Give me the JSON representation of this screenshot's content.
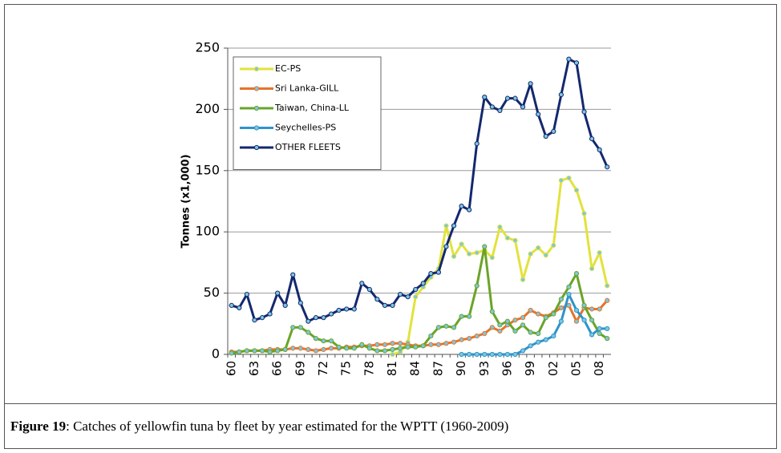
{
  "chart_data": {
    "type": "line",
    "y_label": "Tonnes (x1,000)",
    "categories": [
      "60",
      null,
      null,
      "63",
      null,
      null,
      "66",
      null,
      null,
      "69",
      null,
      null,
      "72",
      null,
      null,
      "75",
      null,
      null,
      "78",
      null,
      null,
      "81",
      null,
      null,
      "84",
      null,
      null,
      "87",
      null,
      null,
      "90",
      null,
      null,
      "93",
      null,
      null,
      "96",
      null,
      null,
      "99",
      null,
      null,
      "02",
      null,
      null,
      "05",
      null,
      null,
      "08",
      null
    ],
    "ylim": [
      0,
      250
    ],
    "yticks": [
      0,
      50,
      100,
      150,
      200,
      250
    ],
    "grid": true,
    "legend": "top-left",
    "series": [
      {
        "name": "EC-PS",
        "color": "#e2e23c",
        "values": [
          null,
          null,
          null,
          null,
          null,
          null,
          null,
          null,
          null,
          null,
          null,
          null,
          null,
          null,
          null,
          null,
          null,
          null,
          null,
          null,
          null,
          0,
          2,
          10,
          47,
          55,
          63,
          70,
          105,
          80,
          90,
          82,
          83,
          85,
          79,
          104,
          95,
          93,
          61,
          82,
          87,
          81,
          89,
          142,
          144,
          134,
          115,
          70,
          83,
          56
        ]
      },
      {
        "name": "Sri Lanka-GILL",
        "color": "#e4742a",
        "values": [
          2,
          2,
          3,
          3,
          3,
          4,
          4,
          4,
          5,
          5,
          4,
          3,
          4,
          5,
          5,
          6,
          6,
          7,
          7,
          8,
          8,
          9,
          9,
          8,
          7,
          7,
          8,
          8,
          9,
          10,
          12,
          13,
          15,
          17,
          22,
          19,
          24,
          28,
          30,
          36,
          33,
          31,
          34,
          38,
          40,
          27,
          38,
          37,
          37,
          44
        ]
      },
      {
        "name": "Taiwan, China-LL",
        "color": "#6aa428",
        "values": [
          1,
          2,
          3,
          3,
          3,
          2,
          3,
          4,
          22,
          22,
          18,
          13,
          11,
          11,
          6,
          5,
          5,
          8,
          5,
          3,
          3,
          4,
          5,
          6,
          6,
          7,
          15,
          22,
          23,
          22,
          31,
          31,
          56,
          88,
          35,
          24,
          27,
          19,
          24,
          18,
          17,
          30,
          33,
          45,
          55,
          66,
          40,
          28,
          17,
          13
        ]
      },
      {
        "name": "Seychelles-PS",
        "color": "#2f94c8",
        "values": [
          null,
          null,
          null,
          null,
          null,
          null,
          null,
          null,
          null,
          null,
          null,
          null,
          null,
          null,
          null,
          null,
          null,
          null,
          null,
          null,
          null,
          null,
          null,
          null,
          null,
          null,
          null,
          null,
          null,
          null,
          0,
          0,
          0,
          0,
          0,
          0,
          0,
          0,
          3,
          7,
          10,
          12,
          15,
          27,
          49,
          36,
          28,
          16,
          21,
          21
        ]
      },
      {
        "name": "OTHER FLEETS",
        "color": "#14286e",
        "values": [
          40,
          38,
          49,
          28,
          30,
          33,
          50,
          40,
          65,
          42,
          27,
          30,
          30,
          33,
          36,
          37,
          37,
          58,
          53,
          45,
          40,
          40,
          49,
          47,
          53,
          58,
          66,
          67,
          88,
          105,
          121,
          118,
          172,
          210,
          202,
          199,
          209,
          209,
          202,
          221,
          196,
          178,
          182,
          212,
          241,
          238,
          198,
          176,
          167,
          153
        ]
      }
    ]
  },
  "caption": {
    "label": "Figure 19",
    "text": ": Catches of yellowfin tuna by fleet by year estimated for the WPTT (1960-2009)"
  }
}
